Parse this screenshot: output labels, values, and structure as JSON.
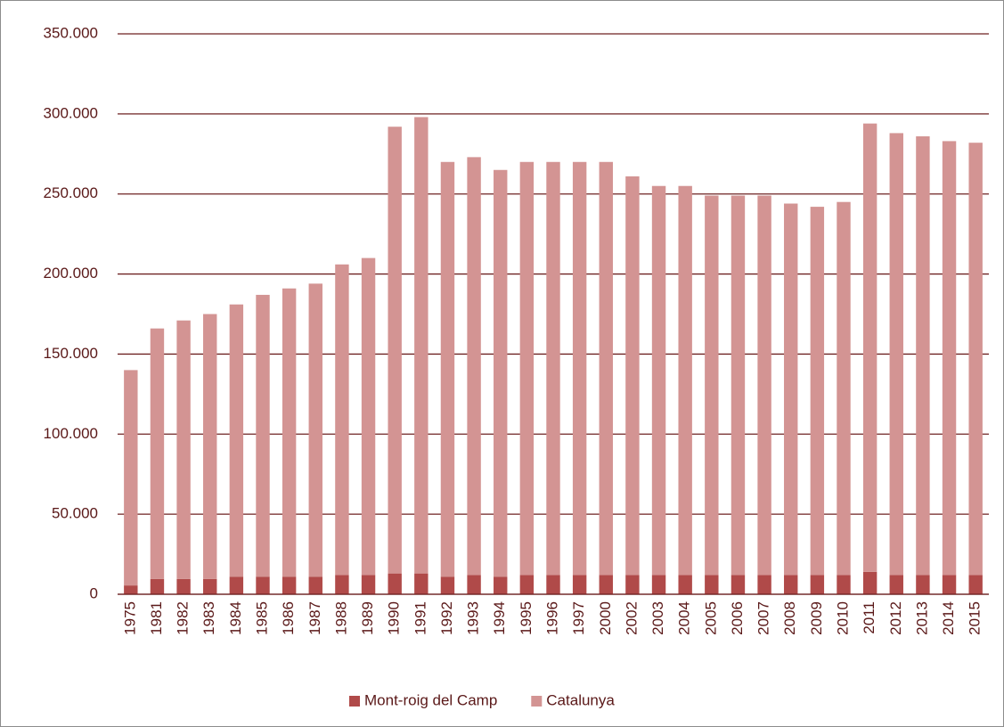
{
  "chart_data": {
    "type": "stacked_bar",
    "categories": [
      "1975",
      "1981",
      "1982",
      "1983",
      "1984",
      "1985",
      "1986",
      "1987",
      "1988",
      "1989",
      "1990",
      "1991",
      "1992",
      "1993",
      "1994",
      "1995",
      "1996",
      "1997",
      "2000",
      "2002",
      "2003",
      "2004",
      "2005",
      "2006",
      "2007",
      "2008",
      "2009",
      "2010",
      "2011",
      "2012",
      "2013",
      "2014",
      "2015"
    ],
    "series": [
      {
        "name": "Mont-roig del Camp",
        "color": "#b04a49",
        "values": [
          5500,
          9500,
          9500,
          9500,
          11000,
          11000,
          11000,
          11000,
          12000,
          12000,
          13000,
          13000,
          11000,
          12000,
          11000,
          12000,
          12000,
          12000,
          12000,
          12000,
          12000,
          12000,
          12000,
          12000,
          12000,
          12000,
          12000,
          12000,
          14000,
          12000,
          12000,
          12000,
          12000
        ]
      },
      {
        "name": "Catalunya",
        "color": "#d39493",
        "values": [
          134500,
          156500,
          161500,
          165500,
          170000,
          176000,
          180000,
          183000,
          194000,
          198000,
          279000,
          285000,
          259000,
          261000,
          254000,
          258000,
          258000,
          258000,
          258000,
          249000,
          243000,
          243000,
          237000,
          237000,
          237000,
          232000,
          230000,
          233000,
          280000,
          276000,
          274000,
          271000,
          270000
        ]
      }
    ],
    "ylim": [
      0,
      350000
    ],
    "yticks": [
      0,
      {
        "value": 50000,
        "label": "50.000"
      },
      {
        "value": 100000,
        "label": "100.000"
      },
      {
        "value": 150000,
        "label": "150.000"
      },
      {
        "value": 200000,
        "label": "200.000"
      },
      {
        "value": 250000,
        "label": "250.000"
      },
      {
        "value": 300000,
        "label": "300.000"
      },
      {
        "value": 350000,
        "label": "350.000"
      }
    ],
    "grid": true,
    "legend": "bottom"
  }
}
